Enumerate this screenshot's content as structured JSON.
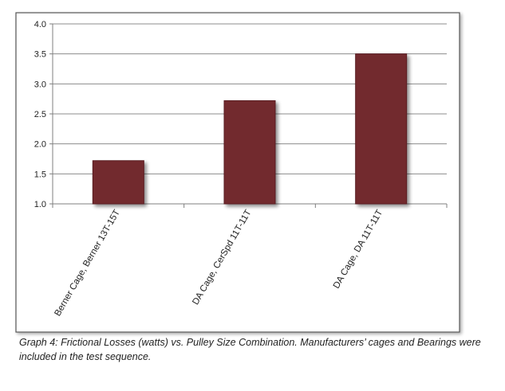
{
  "chart_data": {
    "type": "bar",
    "categories": [
      "Berner Cage, Berner 13T-15T",
      "DA Cage, CerSpd 11T-11T",
      "DA Cage, DA 11T-11T"
    ],
    "values": [
      1.72,
      2.72,
      3.5
    ],
    "ylim": [
      1.0,
      4.0
    ],
    "yticks": [
      "1.0",
      "1.5",
      "2.0",
      "2.5",
      "3.0",
      "3.5",
      "4.0"
    ],
    "grid": true,
    "legend": "none",
    "colors": {
      "bar": "#722B2E",
      "bar_edge": "#5a1f22",
      "gridline": "#8c8c8c",
      "axis": "#7f7f7f",
      "frame": "#555555",
      "shadow": "#9a9a9a"
    }
  },
  "caption": "Graph 4: Frictional Losses (watts) vs. Pulley Size Combination.  Manufacturers’ cages and Bearings were  included in the test sequence."
}
